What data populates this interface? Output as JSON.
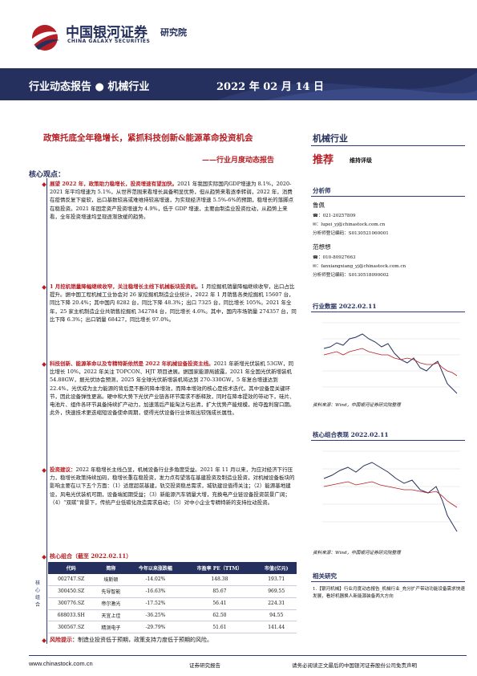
{
  "header": {
    "company_cn": "中国银河证券",
    "company_en": "CHINA GALAXY SECURITIES",
    "institute": "研究院"
  },
  "banner": {
    "left": "行业动态报告 ● 机械行业",
    "date": "2022 年 02 月 14 日"
  },
  "title": {
    "main": "政策托底全年稳增长，紧抓科技创新&能源革命投资机会",
    "sub": "——行业月度动态报告"
  },
  "sidebar": {
    "industry": "机械行业",
    "rating": "推荐",
    "rating_note": "维持评级",
    "analyst_heading": "分析师",
    "analysts": [
      {
        "name": "鲁佩",
        "phone": "021-20257809",
        "email": "lupei_yj@chinastock.com.cn",
        "cert": "分析师登记编码：S0130521060001"
      },
      {
        "name": "范想想",
        "phone": "010-80927663",
        "email": "fanxiangxiang_yj@chinastock.com.cn",
        "cert": "分析师登记编码：S0130518090002"
      }
    ],
    "chart1_title": "行业数据 2022.02.11",
    "chart1_source": "资料来源：Wind，中国银河证券研究院整理",
    "chart2_title": "核心组合表现 2022.02.11",
    "chart2_source": "资料来源：Wind，中国银河证券研究院整理",
    "related_heading": "相关研究",
    "related_text": "1.【银河机械】行业月度动态报告_机械行业_充分扩产带动功能设备需求快速发展，看好机器换人新能源装备两大方向"
  },
  "core_heading": "核心观点：",
  "points": [
    {
      "lead": "展望 2022 年，政策助力稳增长，投资增速有望加快。",
      "body": "2021 年我国实际国内GDP增速为 8.1%，2020-2021 年平均增速为 5.1%，从世界范围来看增长具备明显优势，但从趋势来看逐季转弱，2022 年，消费在疫情反复下疲软，出口基数较高或难维持较高增速，为实现经济增速 5.5%-6%的预期，稳增长的落脚点在稳投资。2021 年固定资产投资增速为 4.9%，低于 GDP 增速，主要由制造业投资拉动，从趋势上来看，全年投资增速均呈现逐渐放缓的趋势。"
    },
    {
      "lead": "1 月挖机销量降幅继续收窄，关注稳增长主线下机械板块投资机。",
      "body": "1 月挖掘机销量降幅继续收窄，出口占比提升。据中国工程机械工业协会对 26 家挖掘机制造企业统计，2022 年 1 月销售各类挖掘机 15607 台，同比下降 20.4%；其中国内 8282 台，同比下降 48.3%；出口 7325 台，同比增长 105%。2021 年全年，25 家主机制造企业共销售挖掘机 342784 台，同比增长 4.6%。其中，国内市场销量 274357 台，同比下降 6.3%；出口销量 68427，同比增长 97.0%。"
    },
    {
      "lead": "科技创新、能源革命以及专精特新依然是 2022 年机械设备投资主线。",
      "body": "2021 年新增光伏装机 53GW，同比增长 10%，2022 年关注 TOPCON、HJT 项目进展。据国家能源局披露，2021 年全国光伏新增装机 54.88GW，据光伏协会预测，2025 年全球光伏新增装机将达到 270-330GW，5 年复合增速达到 22.4%，光伏成为主力能源的背后是不断的降本增效，而降本增效的核心是技术迭代，其中设备是关键环节，因此设备弹性更高。硬中和大势下光伏产业链各环节需求不断释放，同时在降本提效的带动下，硅片、电池片、组件各环节具备持续扩产动力，加速落后产能淘汰与出清，扩大优势产能规模，抢夺盈利窗口期。此外，快速技术更迭缩短设备使命周期，使得光伏设备行业体现出较强成长属性。"
    },
    {
      "lead": "投资建议：",
      "body": "2022 年稳增长主线凸显，机械设备行业多角度受益。2021 年 11 月以来，为应对经济下行压力，稳增长政策持续加码，稳增长重在稳投资，发力点有望落在基建投资及制造业投资，对机械设备板块的影响主要在以下五个方面：（1）适度超前基建，轨交投资稳总需求，城轨建设值得关注；（2）能源基地建设，风电光伏装机可期，设备端如期受益；（3）新能源汽车销量大增，充换电产业链设备投资前景广阔；（4）“双碳”背景下，传统产业低碳化改造需求启动；（5）对中小企业专精特新的支持拉动投资。"
    }
  ],
  "portfolio": {
    "heading": "核心组合（截至 2022.02.11）",
    "side_label": "核心组合",
    "columns": [
      "代码",
      "简称",
      "今年以来涨跌幅",
      "市盈率 PE（TTM）",
      "市值(亿元)"
    ],
    "rows": [
      [
        "002747.SZ",
        "埃斯顿",
        "-14.02%",
        "148.38",
        "193.71"
      ],
      [
        "300450.SZ",
        "先导智能",
        "-16.63%",
        "85.67",
        "969.55"
      ],
      [
        "300776.SZ",
        "帝尔激光",
        "-17.52%",
        "56.41",
        "224.31"
      ],
      [
        "688033.SH",
        "天宜上佳",
        "-36.25%",
        "62.50",
        "94.55"
      ],
      [
        "300567.SZ",
        "精测电子",
        "-29.79%",
        "51.61",
        "141.44"
      ]
    ]
  },
  "risk": {
    "lead": "风险提示：",
    "body": "制造业投资低于预期，政策支持力度低于预期的风险。"
  },
  "footer": {
    "website": "www.chinastock.com.cn",
    "center": "证券研究报告",
    "right": "请务必阅读正文最后的中国银河证券股份公司免责声明"
  },
  "colors": {
    "navy": "#25305e",
    "red": "#b51e24",
    "blue": "#2d3b7a"
  }
}
